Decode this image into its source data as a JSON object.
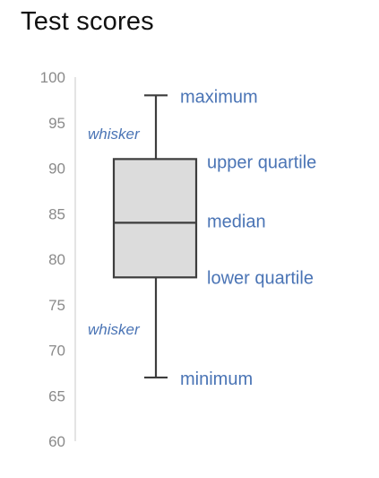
{
  "chart_data": {
    "type": "box",
    "title": "Test scores",
    "ylim": [
      60,
      100
    ],
    "yticks": [
      60,
      65,
      70,
      75,
      80,
      85,
      90,
      95,
      100
    ],
    "grid": false,
    "box": {
      "minimum": 67,
      "lower_quartile": 78,
      "median": 84,
      "upper_quartile": 91,
      "maximum": 98
    },
    "annotations": {
      "maximum": "maximum",
      "upper_quartile": "upper quartile",
      "median": "median",
      "lower_quartile": "lower quartile",
      "minimum": "minimum",
      "whisker_upper": "whisker",
      "whisker_lower": "whisker"
    },
    "colors": {
      "box_fill": "#dcdcdc",
      "box_stroke": "#3d3d3d",
      "annotation": "#4a74b5",
      "tick_label": "#8a8a8a",
      "axis": "#c8c8c8",
      "title": "#111111"
    }
  }
}
